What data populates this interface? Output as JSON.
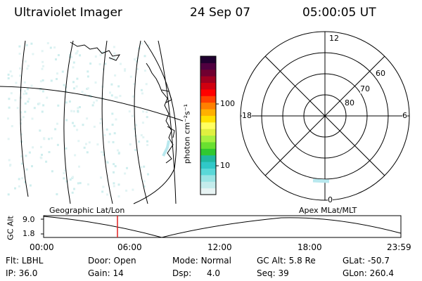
{
  "header": {
    "instrument": "Ultraviolet Imager",
    "date": "24 Sep 07",
    "time": "05:00:05 UT"
  },
  "colorbar": {
    "unit_label": "photon cm⁻²s⁻¹",
    "ticks": [
      "100",
      "10"
    ],
    "colors": [
      "#e8f4f4",
      "#c4ecec",
      "#9ae4e4",
      "#5ad8d8",
      "#30c8c8",
      "#20b8a0",
      "#30c830",
      "#6ae030",
      "#a8f040",
      "#e0f040",
      "#ffff60",
      "#ffe000",
      "#ffb000",
      "#ff8000",
      "#ff4000",
      "#ff0000",
      "#d00010",
      "#a00020",
      "#700030",
      "#500040",
      "#200030"
    ]
  },
  "polar_plot": {
    "mlt_labels": {
      "top": "12",
      "left": "18",
      "right": "6",
      "bottom": "0"
    },
    "lat_labels": [
      "60",
      "70",
      "80"
    ]
  },
  "timeline": {
    "y_axis_title": "GC Alt",
    "y_ticks": [
      "9.0",
      "1.8"
    ],
    "left_title": "Geographic Lat/Lon",
    "right_title": "Apex MLat/MLT",
    "x_ticks": [
      "00:00",
      "06:00",
      "12:00",
      "18:00",
      "23:59"
    ],
    "marker_time": "05:00"
  },
  "status": {
    "row1": [
      {
        "key": "Flt:",
        "value": "LBHL"
      },
      {
        "key": "Door:",
        "value": "Open"
      },
      {
        "key": "Mode:",
        "value": "Normal"
      },
      {
        "key": "GC Alt:",
        "value": "5.8 Re"
      },
      {
        "key": "GLat:",
        "value": "-50.7"
      }
    ],
    "row2": [
      {
        "key": "IP:",
        "value": "36.0"
      },
      {
        "key": "Gain:",
        "value": "14"
      },
      {
        "key": "Dsp:",
        "value": "4.0"
      },
      {
        "key": "Seq:",
        "value": "39"
      },
      {
        "key": "GLon:",
        "value": "260.4"
      }
    ]
  }
}
